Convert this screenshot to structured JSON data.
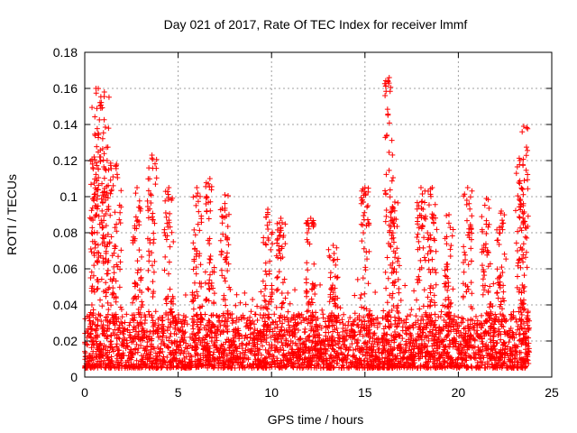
{
  "chart_data": {
    "type": "scatter",
    "title": "Day 021 of 2017, Rate Of TEC Index for receiver lmmf",
    "xlabel": "GPS time / hours",
    "ylabel": "ROTI / TECUs",
    "xlim": [
      0,
      25
    ],
    "ylim": [
      0,
      0.18
    ],
    "xticks": [
      0,
      5,
      10,
      15,
      20,
      25
    ],
    "yticks": [
      0,
      0.02,
      0.04,
      0.06,
      0.08,
      0.1,
      0.12,
      0.14,
      0.16,
      0.18
    ],
    "xtick_labels": [
      "0",
      "5",
      "10",
      "15",
      "20",
      "25"
    ],
    "ytick_labels": [
      "0",
      "0.02",
      "0.04",
      "0.06",
      "0.08",
      "0.1",
      "0.12",
      "0.14",
      "0.16",
      "0.18"
    ],
    "grid": true,
    "marker": "+",
    "color": "#ff0000",
    "x_data_range": [
      0,
      23.8
    ],
    "baseline_range": [
      0.005,
      0.035
    ],
    "spikes": [
      {
        "x": 0.6,
        "y": 0.16
      },
      {
        "x": 1.05,
        "y": 0.158
      },
      {
        "x": 1.2,
        "y": 0.12
      },
      {
        "x": 0.5,
        "y": 0.122
      },
      {
        "x": 1.7,
        "y": 0.118
      },
      {
        "x": 2.8,
        "y": 0.105
      },
      {
        "x": 3.6,
        "y": 0.123
      },
      {
        "x": 4.5,
        "y": 0.105
      },
      {
        "x": 6.0,
        "y": 0.105
      },
      {
        "x": 6.7,
        "y": 0.11
      },
      {
        "x": 7.5,
        "y": 0.101
      },
      {
        "x": 9.8,
        "y": 0.093
      },
      {
        "x": 10.5,
        "y": 0.088
      },
      {
        "x": 12.1,
        "y": 0.088
      },
      {
        "x": 13.3,
        "y": 0.073
      },
      {
        "x": 15.0,
        "y": 0.105
      },
      {
        "x": 16.3,
        "y": 0.166
      },
      {
        "x": 16.6,
        "y": 0.097
      },
      {
        "x": 18.0,
        "y": 0.105
      },
      {
        "x": 18.6,
        "y": 0.105
      },
      {
        "x": 19.5,
        "y": 0.09
      },
      {
        "x": 20.5,
        "y": 0.105
      },
      {
        "x": 21.5,
        "y": 0.099
      },
      {
        "x": 22.3,
        "y": 0.092
      },
      {
        "x": 23.3,
        "y": 0.12
      },
      {
        "x": 23.5,
        "y": 0.139
      }
    ]
  }
}
